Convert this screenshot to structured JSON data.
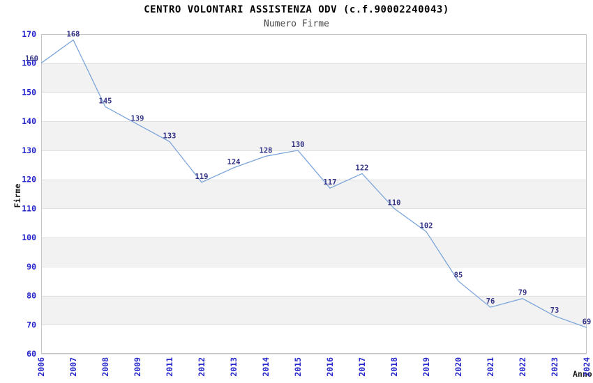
{
  "chart_data": {
    "type": "line",
    "title": "CENTRO VOLONTARI ASSISTENZA ODV (c.f.90002240043)",
    "subtitle": "Numero Firme",
    "xlabel": "Anno",
    "ylabel": "Firme",
    "x": [
      "2006",
      "2007",
      "2008",
      "2009",
      "2011",
      "2012",
      "2013",
      "2014",
      "2015",
      "2016",
      "2017",
      "2018",
      "2019",
      "2020",
      "2021",
      "2022",
      "2023",
      "2024"
    ],
    "series": [
      {
        "name": "Numero Firme",
        "values": [
          160,
          168,
          145,
          139,
          133,
          119,
          124,
          128,
          130,
          117,
          122,
          110,
          102,
          85,
          76,
          79,
          73,
          69
        ]
      }
    ],
    "ylim": [
      60,
      170
    ],
    "ytick_step": 10,
    "grid": true,
    "background_bands": "alternating horizontal, white and light gray, 10-unit tall",
    "legend": "none",
    "colors": {
      "line": "#7ba5da",
      "data_label": "#333388",
      "tick_label": "#2525cc",
      "band_gray": "#f2f2f2",
      "band_white": "#ffffff",
      "gridline": "#e0e0e0",
      "plot_border": "#c4c4c4",
      "title": "#000000",
      "subtitle": "#474747",
      "axis_title": "#1a1a1a"
    }
  }
}
